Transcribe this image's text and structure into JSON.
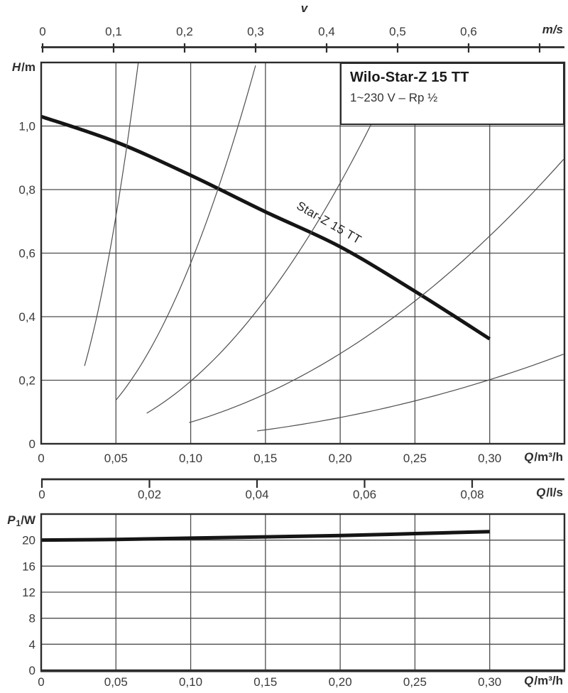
{
  "figure": {
    "curve_label": "Star-Z 15 TT"
  },
  "labels": {
    "h_symbol": "H",
    "h_unit": "/m",
    "v": "v",
    "ms": "m/s",
    "q_symbol": "Q",
    "q_m3h_unit": "/m³/h",
    "q_ls_unit": "/l/s",
    "p_symbol": "P",
    "p_sub": "1",
    "p_unit": "/W"
  },
  "chart_data": [
    {
      "type": "line",
      "title": "Wilo-Star-Z 15 TT",
      "subtitle": "1~230 V – Rp ½",
      "xlabel": "Q/m³/h",
      "ylabel": "H/m",
      "top_axis_label": "v",
      "top_axis_unit": "m/s",
      "secondary_xlabel": "Q/l/s",
      "xlim": [
        0,
        0.35
      ],
      "ylim": [
        0,
        1.2
      ],
      "grid": true,
      "x_ticks": {
        "values": [
          0,
          0.05,
          0.1,
          0.15,
          0.2,
          0.25,
          0.3
        ],
        "labels": [
          "0",
          "0,05",
          "0,10",
          "0,15",
          "0,20",
          "0,25",
          "0,30"
        ]
      },
      "y_ticks": {
        "values": [
          0,
          0.2,
          0.4,
          0.6,
          0.8,
          1.0
        ],
        "labels": [
          "0",
          "0,2",
          "0,4",
          "0,6",
          "0,8",
          "1,0"
        ]
      },
      "top_axis_ticks": {
        "values": [
          0,
          0.1,
          0.2,
          0.3,
          0.4,
          0.5,
          0.6,
          0.7
        ],
        "labels": [
          "0",
          "0,1",
          "0,2",
          "0,3",
          "0,4",
          "0,5",
          "0,6",
          ""
        ]
      },
      "secondary_x_ticks": {
        "values": [
          0,
          0.02,
          0.04,
          0.06,
          0.08
        ],
        "labels": [
          "0",
          "0,02",
          "0,04",
          "0,06",
          "0,08"
        ]
      },
      "series": [
        {
          "name": "Star-Z 15 TT",
          "role": "pump-curve",
          "x": [
            0,
            0.05,
            0.1,
            0.15,
            0.2,
            0.25,
            0.3
          ],
          "y": [
            1.03,
            0.95,
            0.845,
            0.73,
            0.62,
            0.48,
            0.33
          ]
        },
        {
          "name": "system-curve-1",
          "role": "system-curve",
          "model": "H=a*Q^b",
          "a": 262.0,
          "b": 1.97,
          "q_range": [
            0.029,
            0.065
          ]
        },
        {
          "name": "system-curve-2",
          "role": "system-curve",
          "model": "H=a*Q^b",
          "a": 63.8,
          "b": 2.05,
          "q_range": [
            0.05,
            0.1434
          ]
        },
        {
          "name": "system-curve-3",
          "role": "system-curve",
          "model": "H=a*Q^b",
          "a": 22.6,
          "b": 2.06,
          "q_range": [
            0.0706,
            0.2208
          ]
        },
        {
          "name": "system-curve-4",
          "role": "system-curve",
          "model": "H=a*Q^b",
          "a": 7.81,
          "b": 2.06,
          "q_range": [
            0.099,
            0.3494
          ]
        },
        {
          "name": "system-curve-5",
          "role": "system-curve",
          "model": "H=a*Q^b",
          "a": 2.85,
          "b": 2.2,
          "q_range": [
            0.1444,
            0.3494
          ]
        }
      ]
    },
    {
      "type": "line",
      "xlabel": "Q/m³/h",
      "ylabel": "P₁/W",
      "xlim": [
        0,
        0.35
      ],
      "ylim": [
        0,
        24
      ],
      "grid": true,
      "x_ticks": {
        "values": [
          0,
          0.05,
          0.1,
          0.15,
          0.2,
          0.25,
          0.3
        ],
        "labels": [
          "0",
          "0,05",
          "0,10",
          "0,15",
          "0,20",
          "0,25",
          "0,30"
        ]
      },
      "y_ticks": {
        "values": [
          0,
          4,
          8,
          12,
          16,
          20
        ],
        "labels": [
          "0",
          "4",
          "8",
          "12",
          "16",
          "20"
        ]
      },
      "series": [
        {
          "name": "P1",
          "role": "power-curve",
          "x": [
            0,
            0.05,
            0.1,
            0.15,
            0.2,
            0.25,
            0.3
          ],
          "y": [
            20.0,
            20.1,
            20.3,
            20.5,
            20.7,
            21.0,
            21.3
          ]
        }
      ]
    }
  ]
}
